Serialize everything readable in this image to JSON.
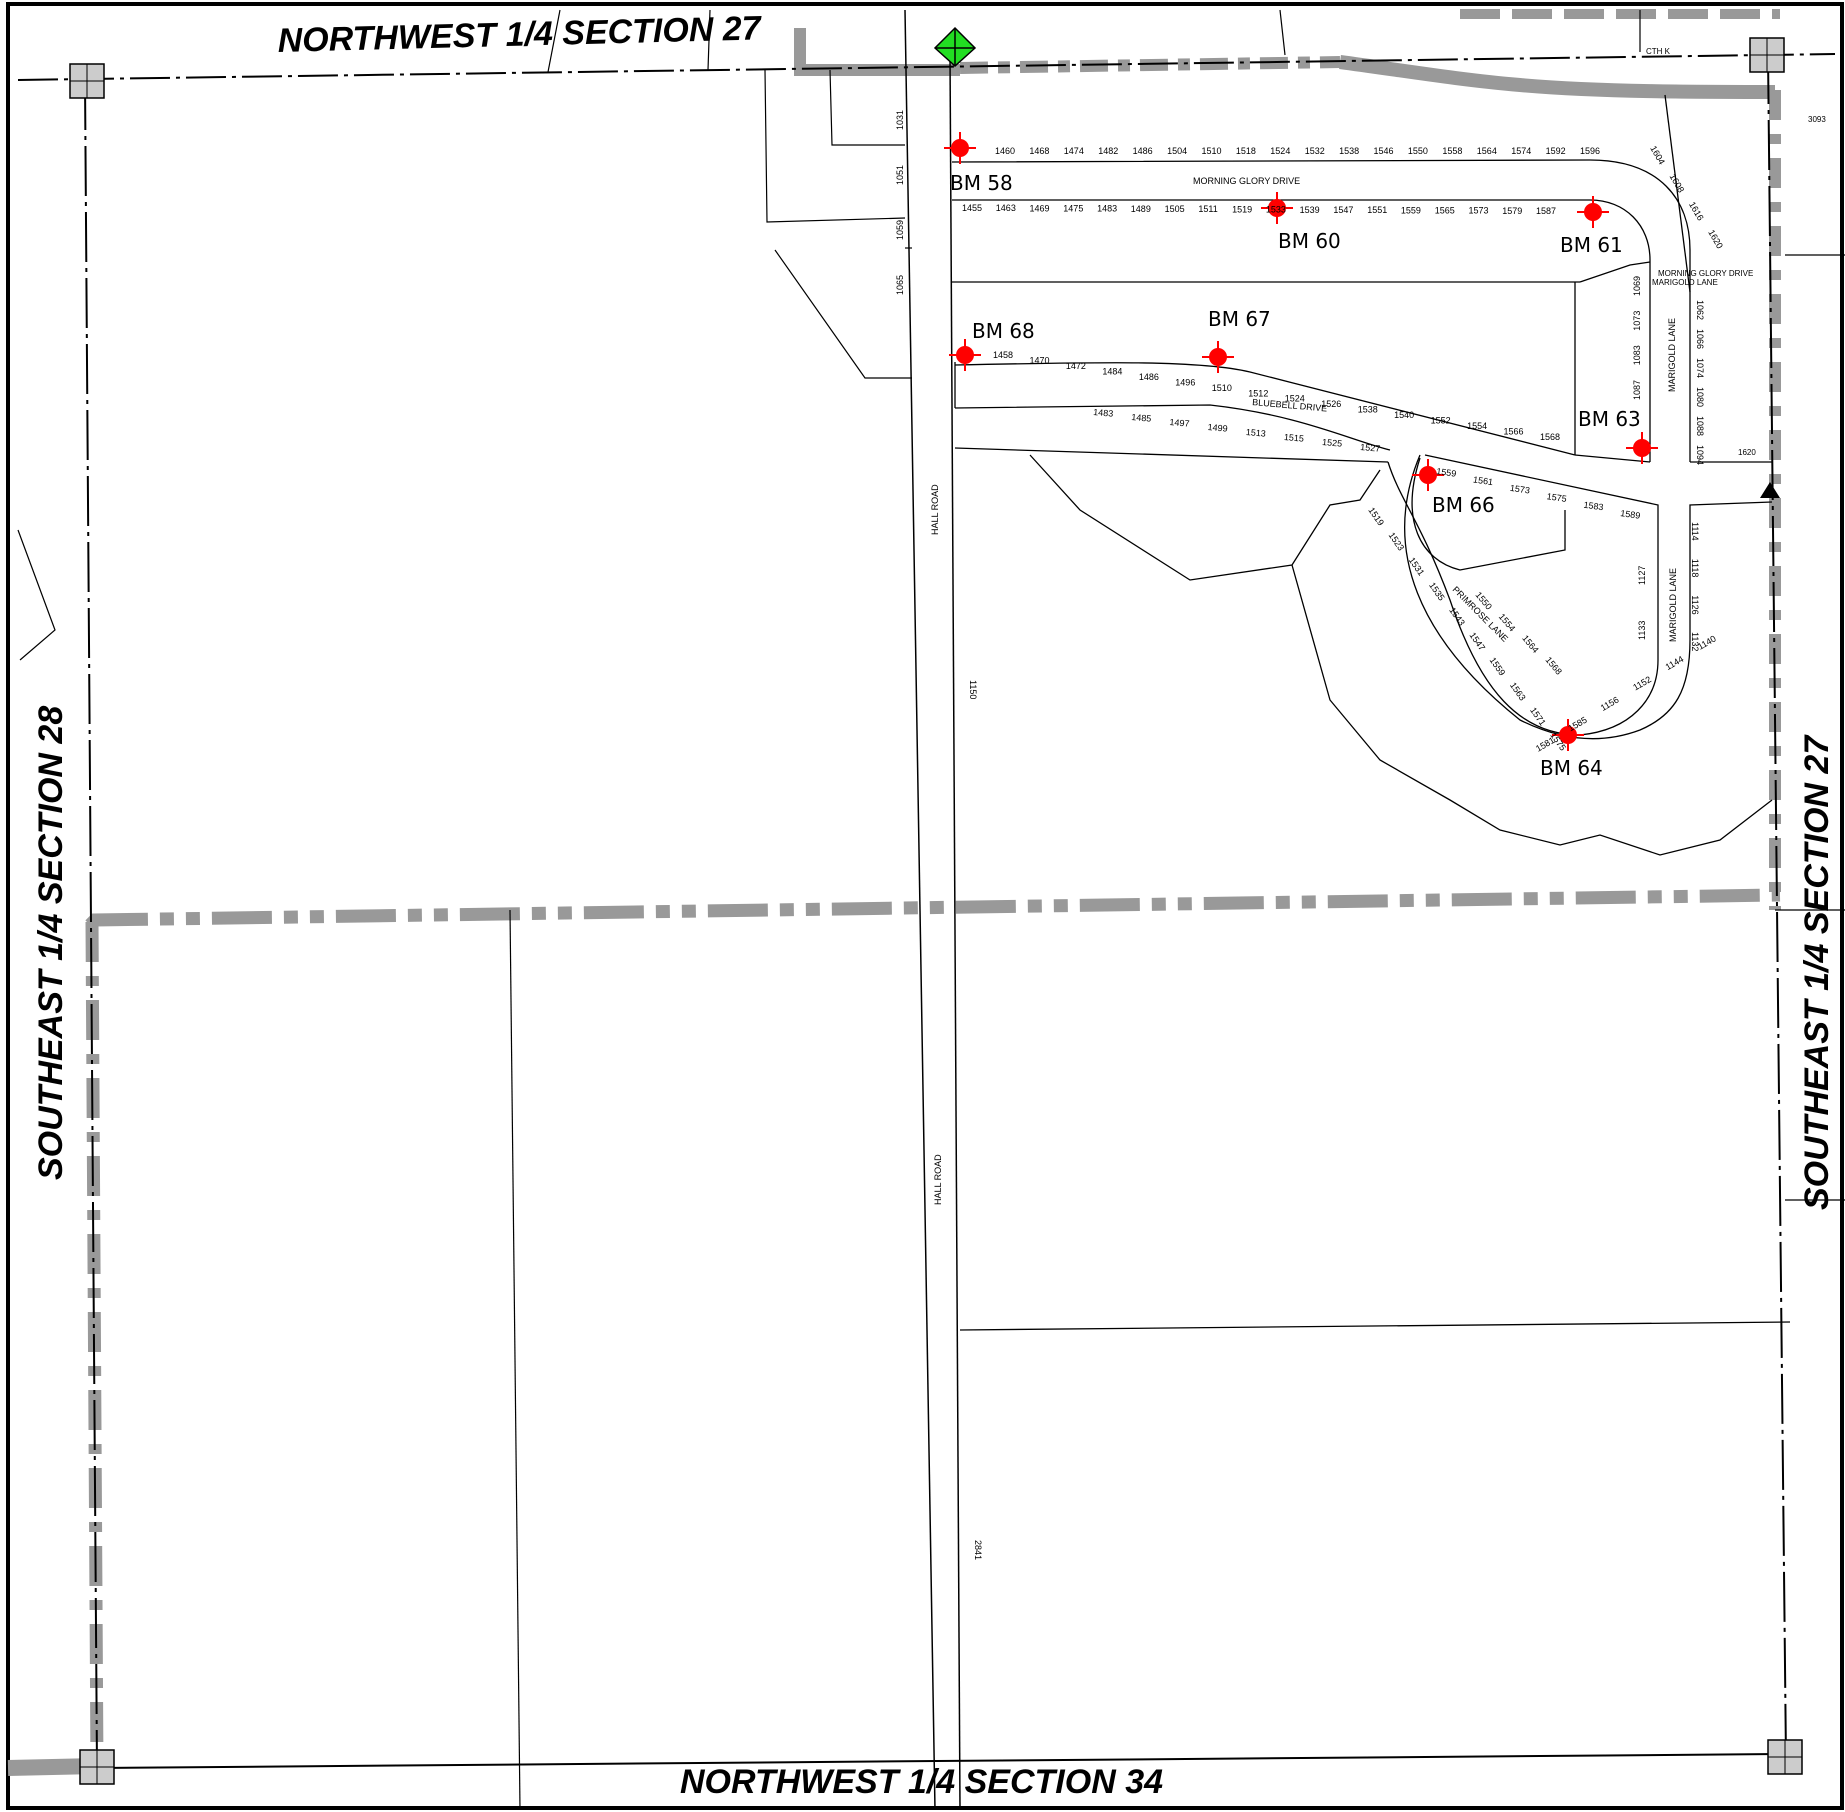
{
  "section_labels": {
    "top": "NORTHWEST 1/4 SECTION 27",
    "bottom": "NORTHWEST 1/4 SECTION 34",
    "left": "SOUTHEAST 1/4 SECTION 28",
    "right": "SOUTHEAST 1/4 SECTION 27"
  },
  "roads": {
    "hall_road": "HALL ROAD",
    "morning_glory": "MORNING GLORY DRIVE",
    "bluebell": "BLUEBELL DRIVE",
    "primrose": "PRIMROSE LANE",
    "marigold": "MARIGOLD LANE",
    "cth": "CTH    K",
    "morning_glory_small": "MORNING GLORY DRIVE",
    "marigold_small": "MARIGOLD LANE"
  },
  "benchmarks": {
    "bm58": "BM 58",
    "bm60": "BM 60",
    "bm61": "BM 61",
    "bm63": "BM 63",
    "bm64": "BM 64",
    "bm66": "BM 66",
    "bm67": "BM 67",
    "bm68": "BM 68"
  },
  "parcels": {
    "mg_north": [
      "1460",
      "1468",
      "1474",
      "1482",
      "1486",
      "1504",
      "1510",
      "1518",
      "1524",
      "1532",
      "1538",
      "1546",
      "1550",
      "1558",
      "1564",
      "1574",
      "1592",
      "1596"
    ],
    "mg_south": [
      "1455",
      "1463",
      "1469",
      "1475",
      "1483",
      "1489",
      "1505",
      "1511",
      "1519",
      "1533",
      "1539",
      "1547",
      "1551",
      "1559",
      "1565",
      "1573",
      "1579",
      "1587"
    ],
    "curve_ne": [
      "1604",
      "1608",
      "1616",
      "1620"
    ],
    "marigold_east": [
      "1062",
      "1066",
      "1074",
      "1080",
      "1088",
      "1094"
    ],
    "marigold_west": [
      "1069",
      "1073",
      "1083",
      "1087"
    ],
    "bb_north": [
      "1458",
      "1470",
      "1472",
      "1484",
      "1486",
      "1496",
      "1510",
      "1512",
      "1524",
      "1526",
      "1538",
      "1540",
      "1552",
      "1554",
      "1566",
      "1568"
    ],
    "bb_south": [
      "1483",
      "1485",
      "1497",
      "1499",
      "1513",
      "1515",
      "1525",
      "1527"
    ],
    "primrose_n": [
      "1559",
      "1561",
      "1573",
      "1575",
      "1583",
      "1589"
    ],
    "primrose_inner": [
      "1550",
      "1554",
      "1564",
      "1568"
    ],
    "primrose_outer": [
      "1519",
      "1523",
      "1531",
      "1535",
      "1543",
      "1547",
      "1559",
      "1563",
      "1571",
      "1575"
    ],
    "primrose_s": [
      "1581",
      "1585",
      "1156",
      "1152",
      "1144",
      "1140"
    ],
    "marigold_s_east": [
      "1114",
      "1118",
      "1126",
      "1132"
    ],
    "marigold_s_west": [
      "1127",
      "1133"
    ],
    "hall_west": [
      "1031",
      "1051",
      "1059",
      "1065"
    ],
    "hall_east": [
      "1150",
      "2841"
    ],
    "misc": [
      "3093",
      "1620"
    ]
  }
}
